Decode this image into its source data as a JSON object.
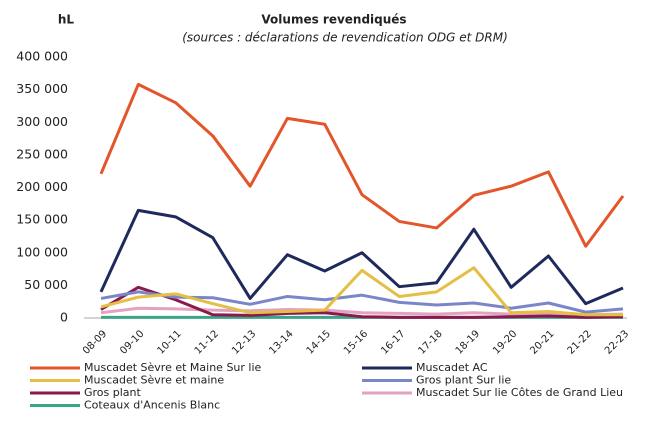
{
  "chart_data": {
    "type": "line",
    "title": "Volumes revendiqués",
    "subtitle": "(sources : déclarations de revendication ODG et DRM)",
    "y_label": "hL",
    "categories": [
      "08-09",
      "09-10",
      "10-11",
      "11-12",
      "12-13",
      "13-14",
      "14-15",
      "15-16",
      "16-17",
      "17-18",
      "18-19",
      "19-20",
      "20-21",
      "21-22",
      "22-23"
    ],
    "series": [
      {
        "name": "Muscadet Sèvre et Maine Sur lie",
        "color": "#e3552a",
        "values": [
          221000,
          358000,
          330000,
          279000,
          202000,
          306000,
          297000,
          189000,
          148000,
          138000,
          188000,
          202000,
          224000,
          110000,
          187000
        ]
      },
      {
        "name": "Muscadet AC",
        "color": "#1f2a5c",
        "values": [
          40000,
          165000,
          155000,
          123000,
          30000,
          97000,
          72000,
          100000,
          48000,
          54000,
          136000,
          47000,
          95000,
          22000,
          46000
        ]
      },
      {
        "name": "Muscadet Sèvre et maine",
        "color": "#e3bf45",
        "values": [
          17000,
          32000,
          37000,
          22000,
          8000,
          10000,
          12000,
          73000,
          33000,
          40000,
          77000,
          8000,
          10000,
          5000,
          5000
        ]
      },
      {
        "name": "Gros plant Sur lie",
        "color": "#7b86c8",
        "values": [
          30000,
          40000,
          32000,
          31000,
          21000,
          33000,
          28000,
          35000,
          24000,
          20000,
          23000,
          15000,
          23000,
          9000,
          14000
        ]
      },
      {
        "name": "Gros plant",
        "color": "#8a1a4c",
        "values": [
          13000,
          47000,
          28000,
          5000,
          4000,
          7000,
          8000,
          2000,
          1000,
          1000,
          1000,
          2000,
          3000,
          1000,
          2000
        ]
      },
      {
        "name": "Muscadet Sur lie Côtes de Grand Lieu",
        "color": "#e3a2bf",
        "values": [
          8000,
          15000,
          14000,
          12000,
          11000,
          13000,
          12000,
          8000,
          7000,
          6000,
          8000,
          6000,
          7000,
          5000,
          6000
        ]
      },
      {
        "name": "Coteaux d'Ancenis Blanc",
        "color": "#3aa58a",
        "values": [
          1000,
          1000,
          1000,
          1000,
          1000,
          1000,
          1000,
          1000,
          1000,
          1000,
          1000,
          1000,
          1000,
          1000,
          1000
        ]
      }
    ],
    "ylim": [
      0,
      400000
    ],
    "yticks": [
      0,
      {
        "value": 50000,
        "label": "50 000"
      },
      {
        "value": 100000,
        "label": "100 000"
      },
      {
        "value": 150000,
        "label": "150 000"
      },
      {
        "value": 200000,
        "label": "200 000"
      },
      {
        "value": 250000,
        "label": "250 000"
      },
      {
        "value": 300000,
        "label": "300 000"
      },
      {
        "value": 350000,
        "label": "350 000"
      },
      {
        "value": 400000,
        "label": "400 000"
      }
    ],
    "grid": false
  }
}
